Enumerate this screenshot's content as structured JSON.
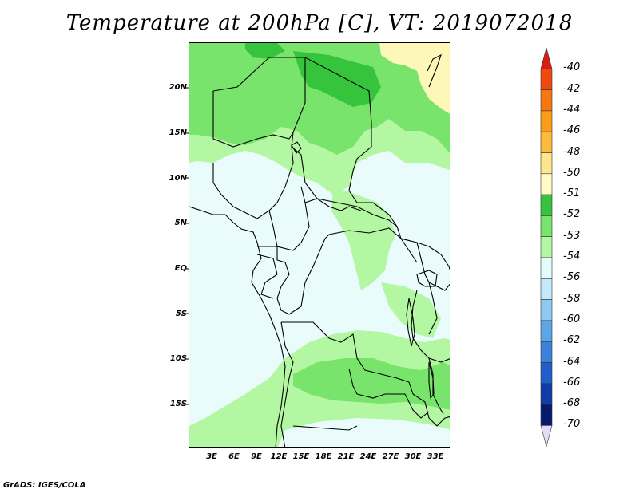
{
  "title": "Temperature at 200hPa [C], VT: 2019072018",
  "credit": "GrADS: IGES/COLA",
  "lat_labels": [
    "20N",
    "15N",
    "10N",
    "5N",
    "EQ",
    "5S",
    "10S",
    "15S"
  ],
  "lon_labels": [
    "3E",
    "6E",
    "9E",
    "12E",
    "15E",
    "18E",
    "21E",
    "24E",
    "27E",
    "30E",
    "33E"
  ],
  "colorbar": {
    "labels": [
      "-40",
      "-42",
      "-44",
      "-46",
      "-48",
      "-50",
      "-51",
      "-52",
      "-53",
      "-54",
      "-56",
      "-58",
      "-60",
      "-62",
      "-64",
      "-66",
      "-68",
      "-70"
    ],
    "colors": [
      "#d61e14",
      "#ee4a10",
      "#f7760f",
      "#fa9e1a",
      "#fcbb3a",
      "#fde68b",
      "#fffac8",
      "#36c43c",
      "#78e46c",
      "#b4f7a3",
      "#e4fcfc",
      "#c4e9fb",
      "#8ec9f2",
      "#5aa6e6",
      "#3b83da",
      "#1f5fcc",
      "#103da8",
      "#081a6e",
      "#e2dcf5"
    ]
  },
  "map": {
    "colors": {
      "background": "#e9fbfb",
      "light_green": "#b4f7a3",
      "mid_green": "#78e46c",
      "dark_green": "#36c43c",
      "pale_yellow": "#fdf7b8",
      "border": "#000000"
    }
  }
}
